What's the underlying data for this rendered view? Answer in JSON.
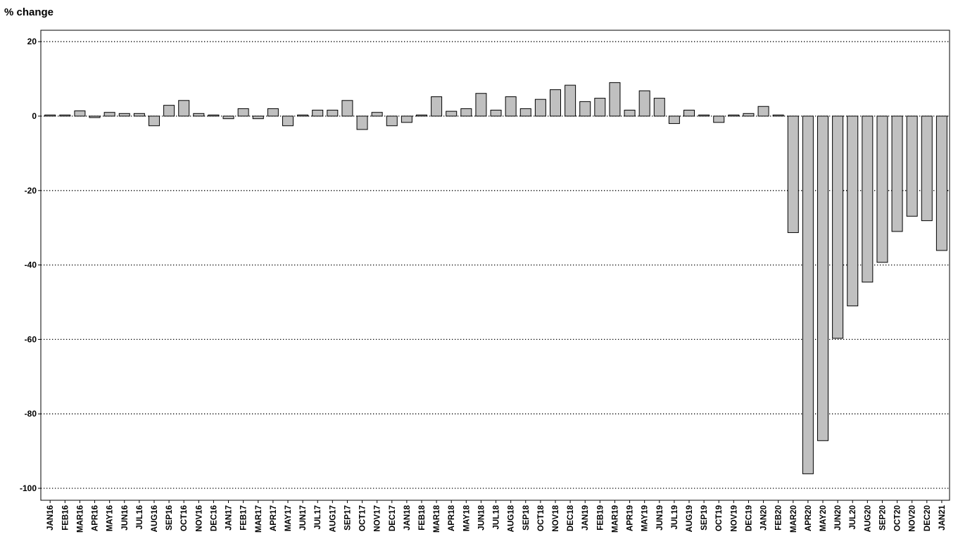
{
  "chart_data": {
    "type": "bar",
    "ylabel": "% change",
    "xlabel": "",
    "title": "",
    "ylim": [
      -103,
      23
    ],
    "yticks": [
      20,
      0,
      -20,
      -40,
      -60,
      -80,
      -100
    ],
    "grid": "horizontal-dotted",
    "bar_color": "#c0c0c0",
    "bar_edge_color": "#000000",
    "categories": [
      "JAN16",
      "FEB16",
      "MAR16",
      "APR16",
      "MAY16",
      "JUN16",
      "JUL16",
      "AUG16",
      "SEP16",
      "OCT16",
      "NOV16",
      "DEC16",
      "JAN17",
      "FEB17",
      "MAR17",
      "APR17",
      "MAY17",
      "JUN17",
      "JUL17",
      "AUG17",
      "SEP17",
      "OCT17",
      "NOV17",
      "DEC17",
      "JAN18",
      "FEB18",
      "MAR18",
      "APR18",
      "MAY18",
      "JUN18",
      "JUL18",
      "AUG18",
      "SEP18",
      "OCT18",
      "NOV18",
      "DEC18",
      "JAN19",
      "FEB19",
      "MAR19",
      "APR19",
      "MAY19",
      "JUN19",
      "JUL19",
      "AUG19",
      "SEP19",
      "OCT19",
      "NOV19",
      "DEC19",
      "JAN20",
      "FEB20",
      "MAR20",
      "APR20",
      "MAY20",
      "JUN20",
      "JUL20",
      "AUG20",
      "SEP20",
      "OCT20",
      "NOV20",
      "DEC20",
      "JAN21"
    ],
    "values": [
      0.3,
      0.3,
      1.4,
      -0.4,
      1.0,
      0.7,
      0.7,
      -2.6,
      2.9,
      4.2,
      0.7,
      0.3,
      -0.7,
      2.0,
      -0.7,
      2.0,
      -2.6,
      0.3,
      1.6,
      1.6,
      4.2,
      -3.6,
      1.0,
      -2.6,
      -1.7,
      0.3,
      5.2,
      1.3,
      2.0,
      6.1,
      1.6,
      5.2,
      2.0,
      4.5,
      7.1,
      8.3,
      3.9,
      4.8,
      9.0,
      1.6,
      6.8,
      4.8,
      -2.0,
      1.6,
      0.3,
      -1.7,
      0.3,
      0.7,
      2.6,
      0.3,
      -31.3,
      -96.1,
      -87.2,
      -59.7,
      -51.0,
      -44.6,
      -39.3,
      -31.0,
      -26.9,
      -28.1,
      -36.1
    ]
  }
}
